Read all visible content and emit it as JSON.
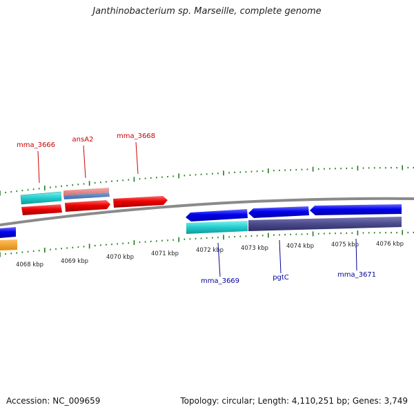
{
  "title": "Janthinobacterium sp. Marseille, complete genome",
  "footer": {
    "accession": "Accession: NC_009659",
    "stats": "Topology: circular; Length: 4,110,251 bp; Genes: 3,749"
  },
  "colors": {
    "backbone": "#8a8a8a",
    "tick": "#1f7a1f",
    "forward_gene": "#ee0000",
    "reverse_gene": "#0000ee",
    "forward_label": "#cc0000",
    "reverse_label": "#000099",
    "cds_cyan": "#33cccc",
    "cds_indigo": "#4a4a8c",
    "cds_pink": "#e88a8a",
    "orange": "#f5a020"
  },
  "kbp_labels": [
    "4068 kbp",
    "4069 kbp",
    "4070 kbp",
    "4071 kbp",
    "4072 kbp",
    "4073 kbp",
    "4074 kbp",
    "4075 kbp",
    "4076 kbp"
  ],
  "gene_labels_forward": [
    "mma_3666",
    "ansA2",
    "mma_3668"
  ],
  "gene_labels_reverse": [
    "mma_3669",
    "pgtC",
    "mma_3671"
  ]
}
